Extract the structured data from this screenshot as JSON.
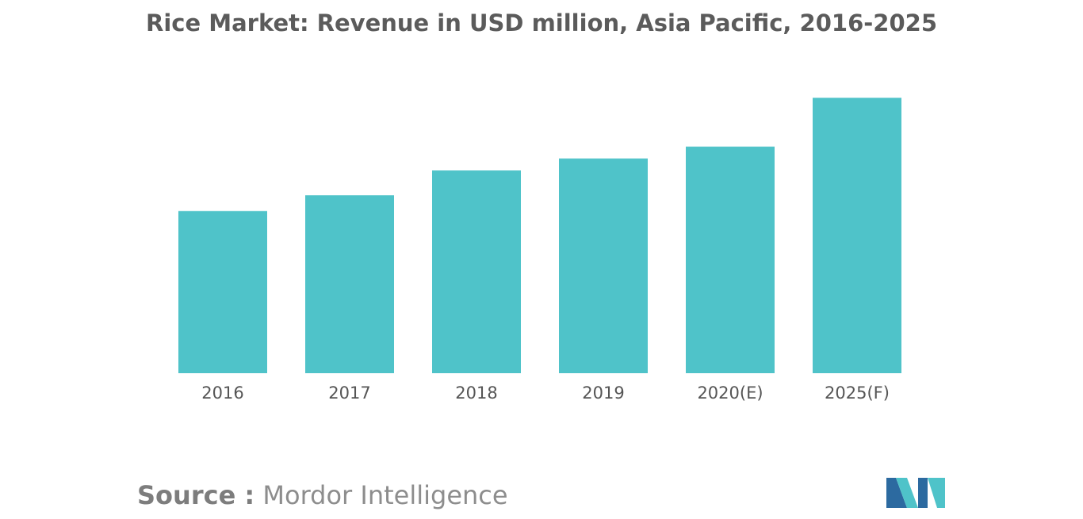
{
  "chart_data": {
    "type": "bar",
    "title": "Rice Market: Revenue in USD million, Asia Pacific, 2016-2025",
    "categories": [
      "2016",
      "2017",
      "2018",
      "2019",
      "2020(E)",
      "2025(F)"
    ],
    "values": [
      58.5,
      64.2,
      73.1,
      77.4,
      81.7,
      99.3
    ],
    "ylim": [
      0,
      100
    ],
    "grid": false,
    "bar_color": "#4fc3c9",
    "xlabel": "",
    "ylabel": ""
  },
  "source": {
    "label": "Source :",
    "name": "Mordor Intelligence"
  },
  "logo": {
    "icon": "mordor-intelligence-logo-icon",
    "colors": [
      "#2c6aa0",
      "#4fc3c9"
    ]
  }
}
